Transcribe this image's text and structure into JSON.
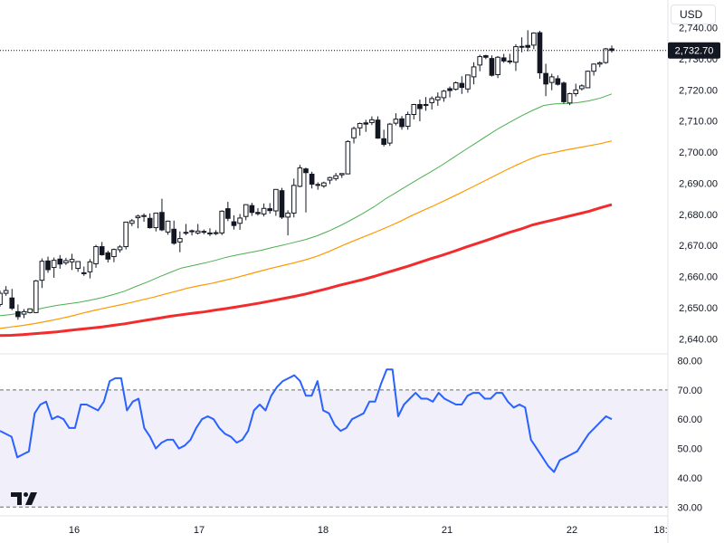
{
  "currency": "USD",
  "brand_logo_text": "TV",
  "chart_data": [
    {
      "type": "candlestick",
      "title": "",
      "price_scale": {
        "ylim": [
          2636,
          2746
        ],
        "tick_labels": [
          "2,740.00",
          "2,730.00",
          "2,720.00",
          "2,710.00",
          "2,700.00",
          "2,690.00",
          "2,680.00",
          "2,670.00",
          "2,660.00",
          "2,650.00",
          "2,640.00"
        ]
      },
      "time_labels": [
        "16",
        "17",
        "18",
        "21",
        "22",
        "18:"
      ],
      "last_price_label": "2,732.70",
      "last_price": 2732.7,
      "candles": [
        [
          2651.0,
          2655.5,
          2650.3,
          2654.6
        ],
        [
          2654.6,
          2656.9,
          2653.8,
          2655.5
        ],
        [
          2653.1,
          2656.0,
          2649.2,
          2649.8
        ],
        [
          2648.7,
          2651.0,
          2646.1,
          2647.1
        ],
        [
          2647.9,
          2649.5,
          2646.6,
          2648.7
        ],
        [
          2648.4,
          2649.7,
          2648.1,
          2649.6
        ],
        [
          2648.4,
          2658.9,
          2648.2,
          2658.6
        ],
        [
          2658.8,
          2665.8,
          2656.3,
          2664.9
        ],
        [
          2665.0,
          2666.4,
          2661.2,
          2662.2
        ],
        [
          2662.9,
          2666.1,
          2659.6,
          2665.2
        ],
        [
          2665.6,
          2666.9,
          2662.5,
          2664.0
        ],
        [
          2664.4,
          2666.0,
          2663.7,
          2665.1
        ],
        [
          2664.7,
          2667.3,
          2662.1,
          2665.5
        ],
        [
          2662.6,
          2664.9,
          2661.5,
          2664.8
        ],
        [
          2661.2,
          2663.2,
          2660.2,
          2661.2
        ],
        [
          2661.5,
          2665.6,
          2659.4,
          2664.7
        ],
        [
          2664.1,
          2670.2,
          2662.8,
          2669.6
        ],
        [
          2669.6,
          2671.1,
          2666.7,
          2667.0
        ],
        [
          2667.6,
          2668.3,
          2664.5,
          2665.6
        ],
        [
          2666.4,
          2669.0,
          2664.6,
          2668.7
        ],
        [
          2668.6,
          2670.1,
          2667.7,
          2669.5
        ],
        [
          2669.6,
          2677.5,
          2668.7,
          2677.5
        ],
        [
          2677.1,
          2678.5,
          2676.2,
          2677.9
        ],
        [
          2678.9,
          2679.9,
          2675.5,
          2679.4
        ],
        [
          2679.3,
          2680.3,
          2677.6,
          2679.6
        ],
        [
          2678.7,
          2680.3,
          2675.4,
          2675.7
        ],
        [
          2675.7,
          2680.5,
          2674.5,
          2680.4
        ],
        [
          2680.6,
          2685.0,
          2674.6,
          2675.0
        ],
        [
          2674.3,
          2678.0,
          2673.4,
          2677.8
        ],
        [
          2675.2,
          2678.0,
          2670.2,
          2670.7
        ],
        [
          2671.1,
          2674.5,
          2667.8,
          2672.2
        ],
        [
          2673.9,
          2676.9,
          2673.3,
          2674.2
        ],
        [
          2674.6,
          2675.1,
          2673.2,
          2674.7
        ],
        [
          2674.0,
          2676.9,
          2673.5,
          2674.6
        ],
        [
          2674.3,
          2675.1,
          2673.6,
          2674.5
        ],
        [
          2673.7,
          2675.5,
          2673.0,
          2674.0
        ],
        [
          2674.0,
          2674.9,
          2673.3,
          2674.1
        ],
        [
          2674.0,
          2681.3,
          2673.3,
          2681.0
        ],
        [
          2681.8,
          2684.0,
          2677.8,
          2678.7
        ],
        [
          2677.6,
          2679.7,
          2675.1,
          2676.4
        ],
        [
          2677.1,
          2680.1,
          2675.0,
          2678.8
        ],
        [
          2679.3,
          2683.2,
          2678.1,
          2683.1
        ],
        [
          2682.8,
          2683.7,
          2679.5,
          2680.6
        ],
        [
          2680.6,
          2682.0,
          2679.6,
          2680.2
        ],
        [
          2680.1,
          2683.5,
          2679.3,
          2681.9
        ],
        [
          2681.8,
          2683.6,
          2680.2,
          2681.2
        ],
        [
          2681.1,
          2688.1,
          2679.5,
          2688.0
        ],
        [
          2687.6,
          2688.5,
          2678.5,
          2679.1
        ],
        [
          2679.1,
          2681.3,
          2673.2,
          2680.4
        ],
        [
          2680.4,
          2691.5,
          2679.0,
          2689.3
        ],
        [
          2689.0,
          2695.9,
          2688.7,
          2694.9
        ],
        [
          2694.6,
          2695.0,
          2680.6,
          2693.4
        ],
        [
          2692.9,
          2693.7,
          2688.3,
          2689.7
        ],
        [
          2689.3,
          2690.3,
          2687.9,
          2689.6
        ],
        [
          2689.1,
          2690.5,
          2688.5,
          2690.1
        ],
        [
          2691.0,
          2692.1,
          2689.7,
          2691.8
        ],
        [
          2691.5,
          2693.3,
          2690.8,
          2692.4
        ],
        [
          2692.7,
          2693.1,
          2691.7,
          2693.1
        ],
        [
          2693.0,
          2703.8,
          2692.9,
          2703.4
        ],
        [
          2704.6,
          2708.2,
          2702.8,
          2707.6
        ],
        [
          2707.8,
          2709.5,
          2705.3,
          2709.2
        ],
        [
          2709.4,
          2710.4,
          2706.5,
          2709.0
        ],
        [
          2709.5,
          2711.5,
          2708.7,
          2710.4
        ],
        [
          2710.3,
          2711.5,
          2704.3,
          2704.5
        ],
        [
          2704.3,
          2707.2,
          2701.8,
          2702.5
        ],
        [
          2702.9,
          2709.4,
          2702.0,
          2709.0
        ],
        [
          2709.3,
          2712.5,
          2708.6,
          2710.6
        ],
        [
          2710.7,
          2711.6,
          2707.2,
          2708.2
        ],
        [
          2708.3,
          2713.0,
          2707.2,
          2712.1
        ],
        [
          2712.1,
          2715.5,
          2710.5,
          2715.3
        ],
        [
          2715.3,
          2716.9,
          2709.9,
          2714.0
        ],
        [
          2715.0,
          2717.7,
          2713.3,
          2715.3
        ],
        [
          2715.9,
          2717.9,
          2713.7,
          2717.2
        ],
        [
          2716.8,
          2719.2,
          2714.9,
          2717.7
        ],
        [
          2717.5,
          2720.0,
          2716.2,
          2719.6
        ],
        [
          2720.4,
          2721.1,
          2717.6,
          2719.8
        ],
        [
          2720.2,
          2722.7,
          2719.8,
          2722.3
        ],
        [
          2722.1,
          2724.4,
          2718.7,
          2720.8
        ],
        [
          2720.3,
          2724.9,
          2719.1,
          2724.8
        ],
        [
          2724.2,
          2728.9,
          2721.8,
          2727.4
        ],
        [
          2728.0,
          2731.3,
          2726.0,
          2730.7
        ],
        [
          2731.0,
          2731.3,
          2729.9,
          2730.5
        ],
        [
          2730.1,
          2731.1,
          2724.3,
          2724.7
        ],
        [
          2724.9,
          2730.9,
          2723.8,
          2730.5
        ],
        [
          2730.3,
          2731.6,
          2728.7,
          2729.3
        ],
        [
          2729.3,
          2731.6,
          2728.3,
          2729.2
        ],
        [
          2728.9,
          2734.7,
          2726.1,
          2733.9
        ],
        [
          2733.8,
          2736.9,
          2732.1,
          2734.0
        ],
        [
          2734.3,
          2739.2,
          2732.4,
          2733.7
        ],
        [
          2734.4,
          2738.5,
          2733.1,
          2738.3
        ],
        [
          2738.4,
          2739.0,
          2723.6,
          2725.5
        ],
        [
          2725.3,
          2728.4,
          2718.0,
          2721.9
        ],
        [
          2722.4,
          2725.2,
          2719.9,
          2724.2
        ],
        [
          2723.6,
          2724.7,
          2721.4,
          2721.8
        ],
        [
          2722.2,
          2722.7,
          2715.6,
          2716.2
        ],
        [
          2715.8,
          2719.1,
          2715.1,
          2718.8
        ],
        [
          2718.8,
          2722.0,
          2717.9,
          2720.0
        ],
        [
          2720.4,
          2721.8,
          2719.8,
          2721.3
        ],
        [
          2720.7,
          2726.2,
          2720.6,
          2726.0
        ],
        [
          2726.0,
          2728.5,
          2724.6,
          2728.3
        ],
        [
          2728.3,
          2729.2,
          2727.3,
          2728.7
        ],
        [
          2728.8,
          2733.5,
          2728.4,
          2733.2
        ],
        [
          2733.2,
          2734.3,
          2732.0,
          2732.7
        ]
      ],
      "series": [
        {
          "name": "",
          "color": "#4caf50",
          "values": [
            2647.4,
            2647.8,
            2648.4,
            2649.2,
            2650.0,
            2650.7,
            2651.2,
            2651.7,
            2652.4,
            2653.2,
            2654.2,
            2655.3,
            2656.8,
            2658.2,
            2659.8,
            2661.3,
            2662.7,
            2663.5,
            2664.3,
            2665.2,
            2666.2,
            2667.0,
            2667.7,
            2668.4,
            2669.3,
            2670.1,
            2671.0,
            2671.9,
            2673.1,
            2674.6,
            2676.3,
            2678.2,
            2680.2,
            2682.4,
            2684.9,
            2687.1,
            2689.3,
            2691.5,
            2693.6,
            2695.8,
            2698.2,
            2700.6,
            2702.9,
            2705.3,
            2707.6,
            2709.6,
            2711.6,
            2713.4,
            2715.0,
            2715.5,
            2715.6,
            2715.9,
            2716.5,
            2717.4,
            2718.7
          ]
        },
        {
          "name": "",
          "color": "#ff9800",
          "values": [
            2643.3,
            2643.8,
            2644.3,
            2644.9,
            2645.6,
            2646.4,
            2647.2,
            2648.2,
            2649.1,
            2649.9,
            2650.7,
            2651.5,
            2652.4,
            2653.3,
            2654.3,
            2655.3,
            2656.3,
            2657.1,
            2657.8,
            2658.7,
            2659.6,
            2660.6,
            2661.6,
            2662.6,
            2663.5,
            2664.4,
            2665.4,
            2666.6,
            2668.1,
            2669.8,
            2671.4,
            2672.9,
            2674.4,
            2676.0,
            2677.7,
            2679.6,
            2681.3,
            2683.0,
            2684.8,
            2686.6,
            2688.5,
            2690.4,
            2692.3,
            2694.2,
            2696.0,
            2697.7,
            2699.1,
            2699.8,
            2700.6,
            2701.3,
            2702.0,
            2702.7,
            2703.6
          ]
        },
        {
          "name": "",
          "color": "#f22c2c",
          "values": [
            2641.0,
            2641.1,
            2641.3,
            2641.6,
            2641.9,
            2642.2,
            2642.6,
            2643.0,
            2643.4,
            2643.8,
            2644.3,
            2644.8,
            2645.4,
            2646.0,
            2646.6,
            2647.2,
            2647.7,
            2648.2,
            2648.6,
            2649.2,
            2649.7,
            2650.3,
            2650.9,
            2651.5,
            2652.2,
            2652.9,
            2653.6,
            2654.4,
            2655.3,
            2656.2,
            2657.2,
            2658.1,
            2659.0,
            2660.0,
            2661.1,
            2662.2,
            2663.3,
            2664.5,
            2665.7,
            2666.8,
            2668.0,
            2669.3,
            2670.5,
            2671.7,
            2673.0,
            2674.2,
            2675.3,
            2676.6,
            2677.5,
            2678.3,
            2679.2,
            2680.1,
            2681.0,
            2682.1,
            2683.1
          ]
        }
      ]
    },
    {
      "type": "line",
      "title": "",
      "ylim": [
        27,
        82
      ],
      "tick_labels": [
        "80.00",
        "70.00",
        "60.00",
        "50.00",
        "40.00",
        "30.00"
      ],
      "band": [
        30,
        70
      ],
      "series": [
        {
          "name": "",
          "color": "#2962ff",
          "values": [
            56,
            55,
            54,
            47,
            48,
            49,
            62,
            65,
            66,
            60,
            61,
            60,
            57,
            57,
            65,
            65,
            64,
            63,
            66,
            73,
            74,
            74,
            63,
            66,
            67,
            57,
            54,
            50,
            52,
            53,
            53,
            50,
            51,
            53,
            57,
            60,
            61,
            60,
            57,
            55,
            54,
            52,
            53,
            56,
            63,
            65,
            63,
            68,
            71,
            73,
            74,
            75,
            73,
            68,
            68,
            73,
            63,
            62,
            58,
            56,
            57,
            60,
            61,
            62,
            66,
            66,
            72,
            77,
            77,
            61,
            65,
            67,
            69,
            67,
            67,
            66,
            69,
            67,
            66,
            65,
            65,
            68,
            69,
            69,
            67,
            67,
            69,
            69,
            66,
            64,
            65,
            64,
            53,
            50,
            47,
            44,
            42,
            46,
            47,
            48,
            49,
            52,
            55,
            57,
            59,
            61,
            60
          ]
        }
      ]
    }
  ]
}
